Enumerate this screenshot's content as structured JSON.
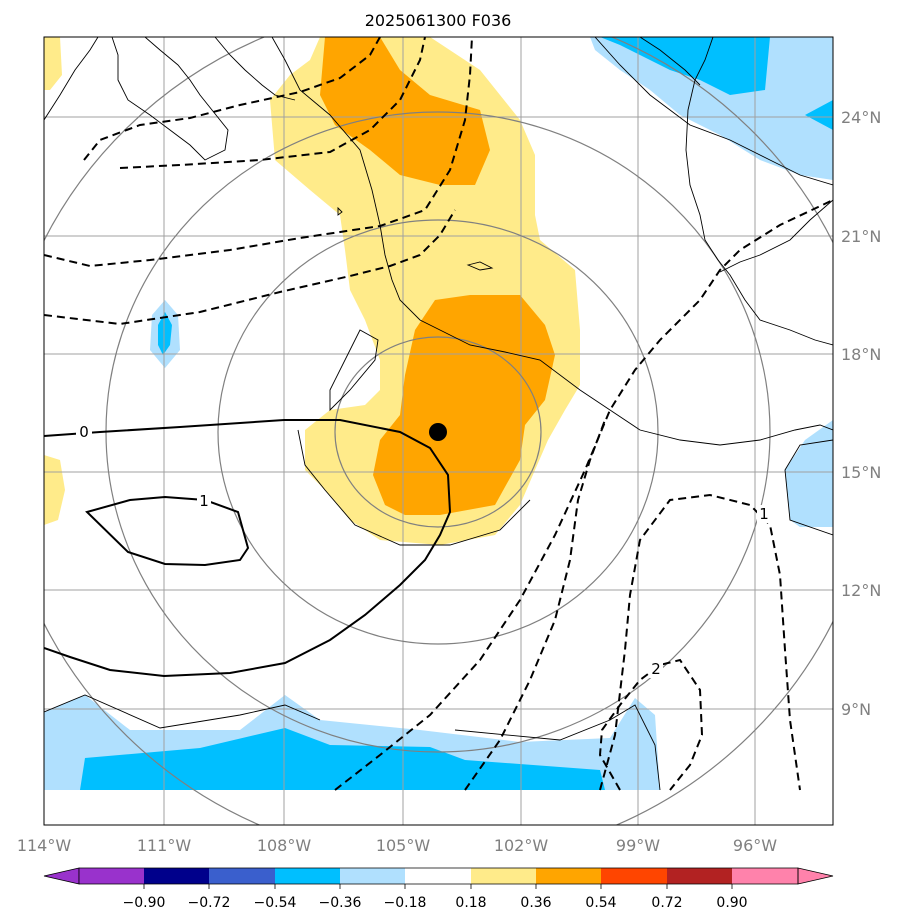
{
  "title": "2025061300 F036",
  "chart_data": {
    "type": "map",
    "title": "2025061300 F036",
    "extent": {
      "lon": [
        -114,
        -94.2
      ],
      "lat": [
        6.2,
        26.2
      ]
    },
    "lon_ticks": [
      {
        "value": -114,
        "label": "114°W"
      },
      {
        "value": -111,
        "label": "111°W"
      },
      {
        "value": -108,
        "label": "108°W"
      },
      {
        "value": -105,
        "label": "105°W"
      },
      {
        "value": -102,
        "label": "102°W"
      },
      {
        "value": -99,
        "label": "99°W"
      },
      {
        "value": -96,
        "label": "96°W"
      }
    ],
    "lat_ticks": [
      {
        "value": 24,
        "label": "24°N"
      },
      {
        "value": 21,
        "label": "21°N"
      },
      {
        "value": 18,
        "label": "18°N"
      },
      {
        "value": 15,
        "label": "15°N"
      },
      {
        "value": 12,
        "label": "12°N"
      },
      {
        "value": 9,
        "label": "9°N"
      }
    ],
    "grid": true,
    "center_marker": {
      "lon": -103.9,
      "lat": 16.0
    },
    "range_rings_deg": [
      2,
      4,
      6,
      8
    ],
    "colorbar": {
      "levels": [
        "−0.90",
        "−0.72",
        "−0.54",
        "−0.36",
        "−0.18",
        "0.18",
        "0.36",
        "0.54",
        "0.72",
        "0.90"
      ],
      "colors": [
        "#9932cc",
        "#00008b",
        "#3a5fcd",
        "#00bfff",
        "#b0e0fe",
        "#ffffff",
        "#ffeb8a",
        "#ffa500",
        "#ff4500",
        "#b22222",
        "#ff82ab"
      ],
      "extend": "both"
    },
    "contour_labels": [
      {
        "text": "0",
        "lon": -113.0,
        "lat": 15.9
      },
      {
        "text": "1",
        "lon": -110.0,
        "lat": 14.4
      },
      {
        "text": "2",
        "lon": -98.5,
        "lat": 9.7
      },
      {
        "text": "1",
        "lon": -96.2,
        "lat": 14.0
      }
    ]
  }
}
